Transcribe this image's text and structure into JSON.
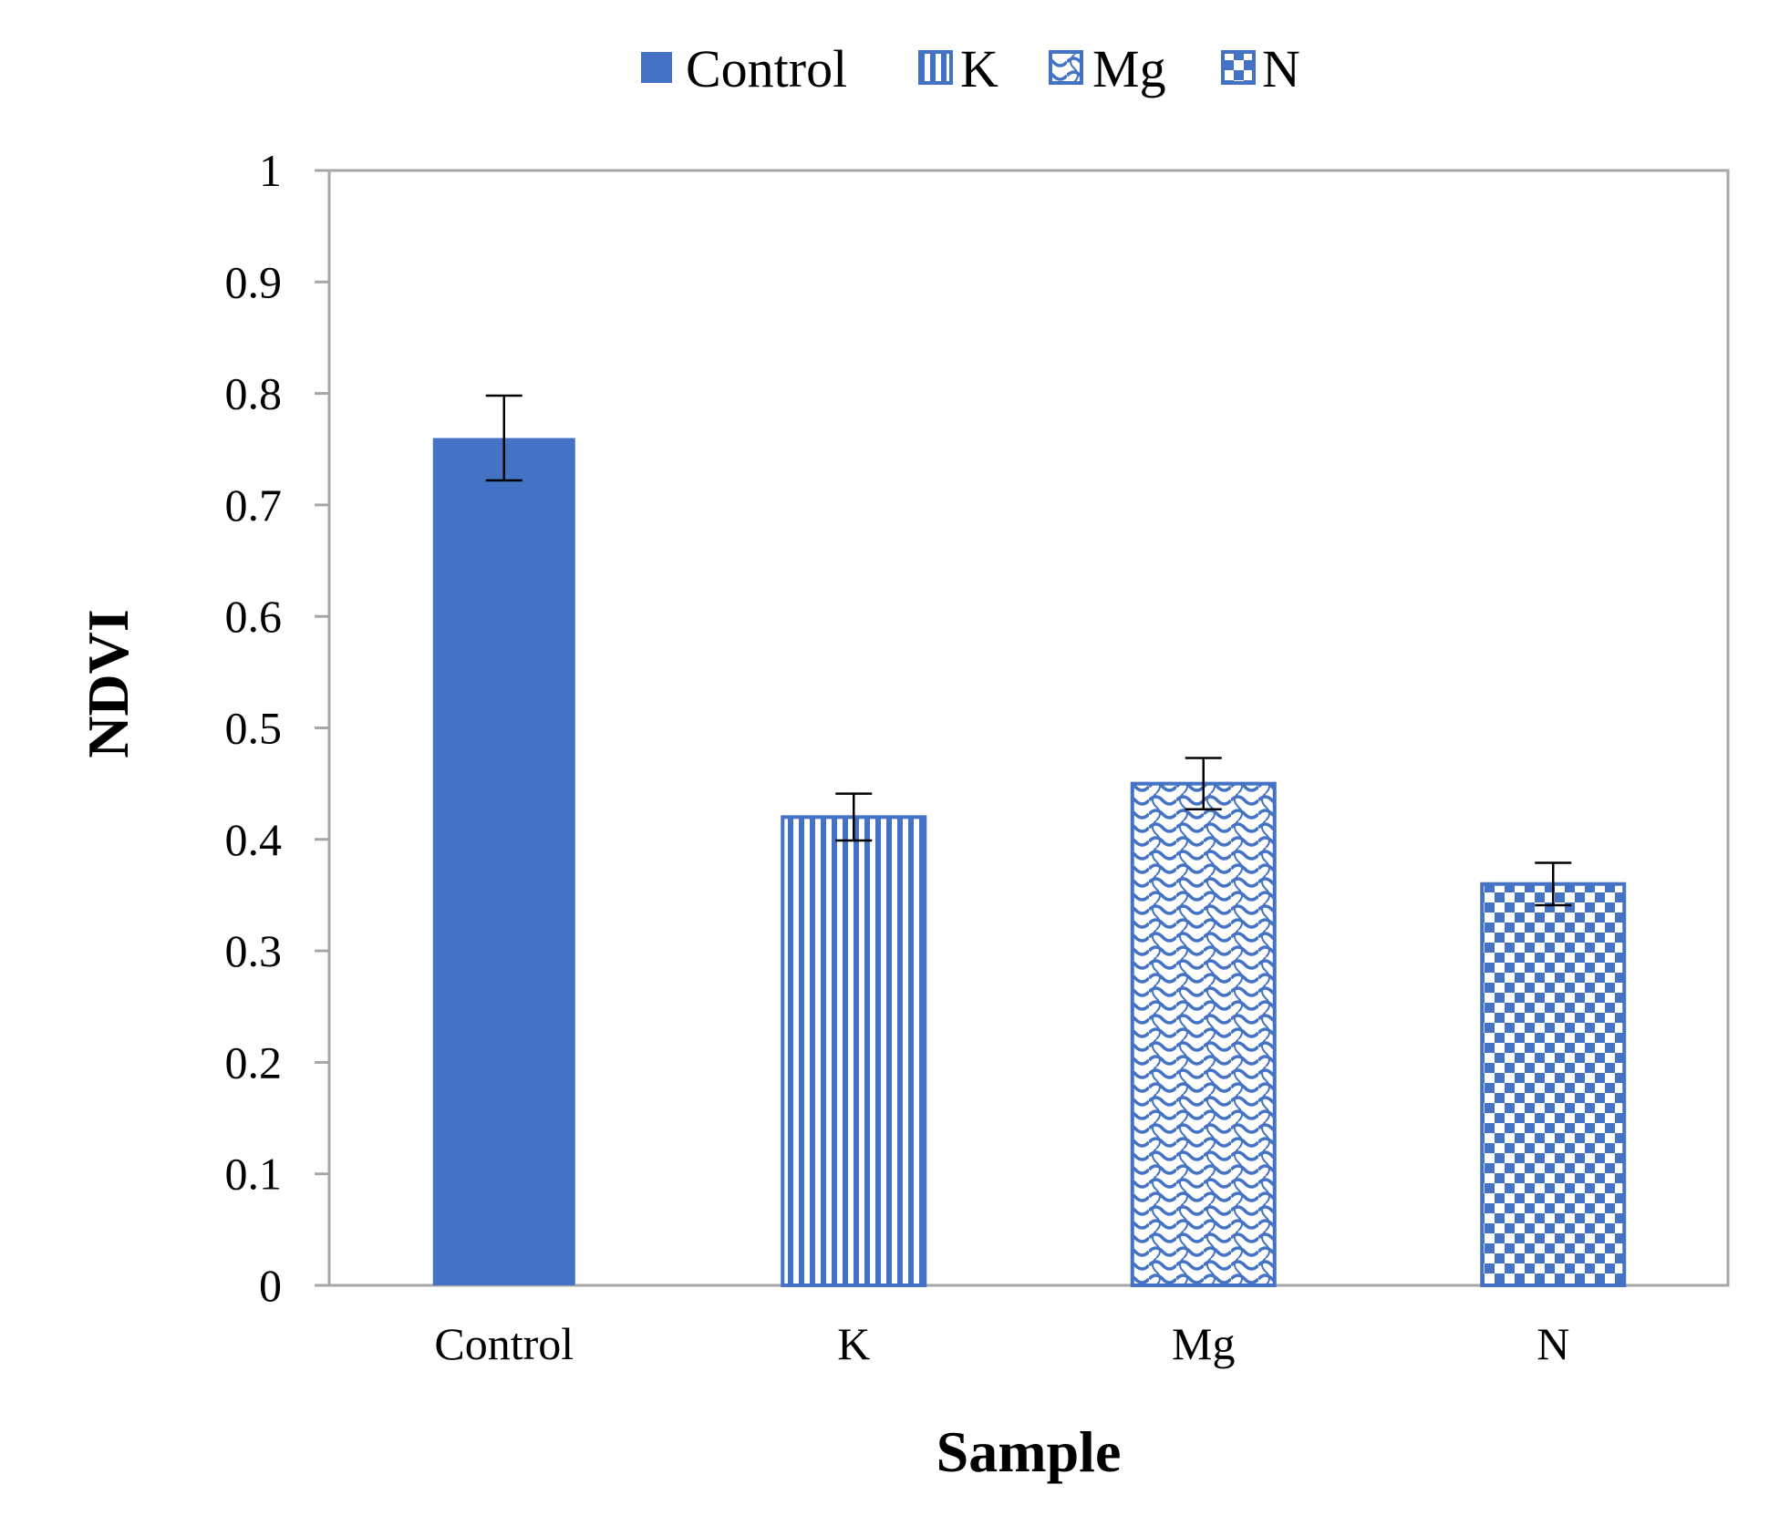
{
  "chart_data": {
    "type": "bar",
    "title": "",
    "xlabel": "Sample",
    "ylabel": "NDVI",
    "categories": [
      "Control",
      "K",
      "Mg",
      "N"
    ],
    "series": [
      {
        "name": "NDVI",
        "values": [
          0.76,
          0.42,
          0.45,
          0.36
        ],
        "error": [
          0.038,
          0.021,
          0.023,
          0.019
        ]
      }
    ],
    "ylim": [
      0,
      1
    ],
    "yticks": [
      "0",
      "0.1",
      "0.2",
      "0.3",
      "0.4",
      "0.5",
      "0.6",
      "0.7",
      "0.8",
      "0.9",
      "1"
    ],
    "legend": {
      "position": "top-center",
      "entries": [
        "Control",
        "K",
        "Mg",
        "N"
      ]
    },
    "grid": false,
    "patterns": [
      "solid",
      "vertical-lines",
      "wave",
      "checker"
    ],
    "colors": {
      "bar": "#4472C4",
      "axis": "#A6A6A6",
      "error_bar": "#000000",
      "text": "#000000"
    }
  }
}
